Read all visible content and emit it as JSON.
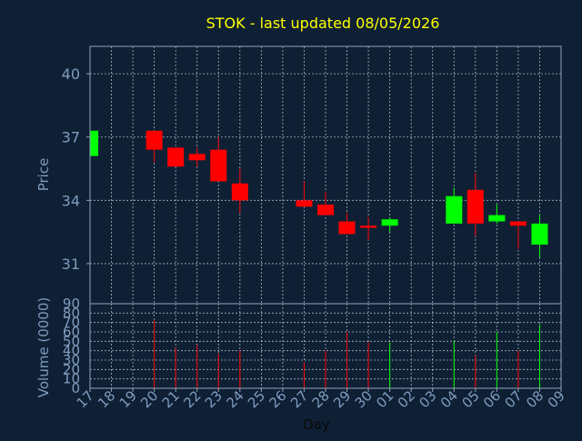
{
  "colors": {
    "background": "#0f2035",
    "axis": "#8fa3bb",
    "grid": "#cfd8e3",
    "title": "#ffff00",
    "up": "#00ff00",
    "down": "#ff0000",
    "label": "#7f9cbe"
  },
  "chart_data": [
    {
      "type": "candlestick",
      "title": "STOK - last updated 08/05/2026",
      "ylabel": "Price",
      "ylim": [
        29.1,
        41.3
      ],
      "yticks": [
        31,
        34,
        37,
        40
      ],
      "grid": true,
      "dates": [
        "17",
        "18",
        "19",
        "20",
        "21",
        "22",
        "23",
        "24",
        "25",
        "26",
        "27",
        "28",
        "29",
        "30",
        "01",
        "02",
        "03",
        "04",
        "05",
        "06",
        "07",
        "08",
        "09"
      ],
      "candles": [
        {
          "date": "17",
          "open": 36.1,
          "high": 37.3,
          "low": 36.1,
          "close": 37.3
        },
        {
          "date": "20",
          "open": 37.3,
          "high": 37.3,
          "low": 35.8,
          "close": 36.4
        },
        {
          "date": "21",
          "open": 36.5,
          "high": 36.5,
          "low": 35.6,
          "close": 35.6
        },
        {
          "date": "22",
          "open": 36.2,
          "high": 36.5,
          "low": 35.6,
          "close": 35.9
        },
        {
          "date": "23",
          "open": 36.4,
          "high": 37.0,
          "low": 34.9,
          "close": 34.9
        },
        {
          "date": "24",
          "open": 34.8,
          "high": 35.5,
          "low": 33.4,
          "close": 34.0
        },
        {
          "date": "27",
          "open": 34.0,
          "high": 34.9,
          "low": 33.7,
          "close": 33.7
        },
        {
          "date": "28",
          "open": 33.8,
          "high": 34.4,
          "low": 33.3,
          "close": 33.3
        },
        {
          "date": "29",
          "open": 33.0,
          "high": 33.4,
          "low": 32.4,
          "close": 32.4
        },
        {
          "date": "30",
          "open": 32.8,
          "high": 33.2,
          "low": 32.1,
          "close": 32.7
        },
        {
          "date": "01",
          "open": 32.8,
          "high": 33.2,
          "low": 32.5,
          "close": 33.1
        },
        {
          "date": "04",
          "open": 32.9,
          "high": 34.6,
          "low": 32.9,
          "close": 34.2
        },
        {
          "date": "05",
          "open": 34.5,
          "high": 35.3,
          "low": 32.3,
          "close": 32.9
        },
        {
          "date": "06",
          "open": 33.0,
          "high": 33.8,
          "low": 32.9,
          "close": 33.3
        },
        {
          "date": "07",
          "open": 33.0,
          "high": 33.0,
          "low": 31.7,
          "close": 32.8
        },
        {
          "date": "08",
          "open": 31.9,
          "high": 33.3,
          "low": 31.3,
          "close": 32.9
        }
      ]
    },
    {
      "type": "bar",
      "ylabel": "Volume (0000)",
      "xlabel": "Day",
      "ylim": [
        0,
        90
      ],
      "yticks": [
        0,
        10,
        20,
        30,
        40,
        50,
        60,
        70,
        80,
        90
      ],
      "grid": true,
      "bars": [
        {
          "date": "17",
          "value": 0,
          "direction": "up"
        },
        {
          "date": "20",
          "value": 73,
          "direction": "down"
        },
        {
          "date": "21",
          "value": 43,
          "direction": "down"
        },
        {
          "date": "22",
          "value": 46,
          "direction": "down"
        },
        {
          "date": "23",
          "value": 37,
          "direction": "down"
        },
        {
          "date": "24",
          "value": 40,
          "direction": "down"
        },
        {
          "date": "27",
          "value": 28,
          "direction": "down"
        },
        {
          "date": "28",
          "value": 40,
          "direction": "down"
        },
        {
          "date": "29",
          "value": 60,
          "direction": "down"
        },
        {
          "date": "30",
          "value": 49,
          "direction": "down"
        },
        {
          "date": "01",
          "value": 49,
          "direction": "up"
        },
        {
          "date": "04",
          "value": 51,
          "direction": "up"
        },
        {
          "date": "05",
          "value": 35,
          "direction": "down"
        },
        {
          "date": "06",
          "value": 60,
          "direction": "up"
        },
        {
          "date": "07",
          "value": 40,
          "direction": "down"
        },
        {
          "date": "08",
          "value": 68,
          "direction": "up"
        }
      ]
    }
  ]
}
